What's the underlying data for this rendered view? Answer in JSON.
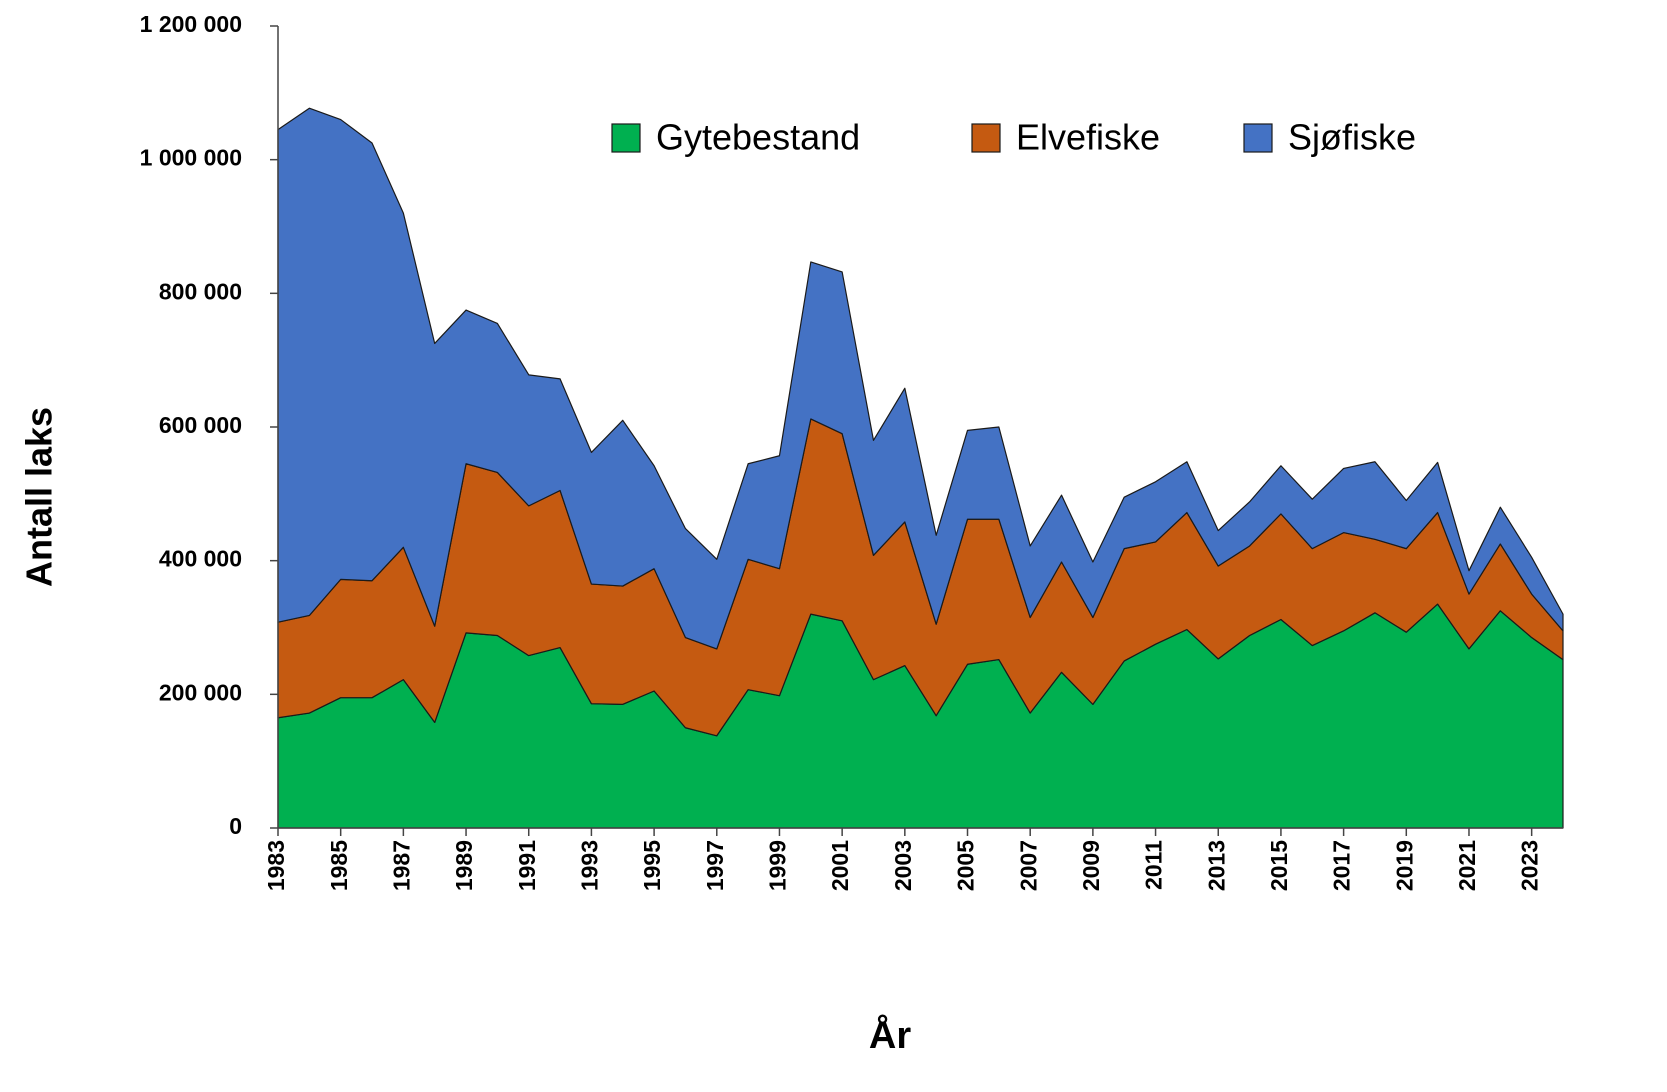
{
  "chart_data": {
    "type": "stacked_area",
    "y_label": "Antall laks",
    "x_label": "År",
    "x": [
      1983,
      1984,
      1985,
      1986,
      1987,
      1988,
      1989,
      1990,
      1991,
      1992,
      1993,
      1994,
      1995,
      1996,
      1997,
      1998,
      1999,
      2000,
      2001,
      2002,
      2003,
      2004,
      2005,
      2006,
      2007,
      2008,
      2009,
      2010,
      2011,
      2012,
      2013,
      2014,
      2015,
      2016,
      2017,
      2018,
      2019,
      2020,
      2021,
      2022,
      2023,
      2024
    ],
    "series": [
      {
        "name": "Gytebestand",
        "color": "#00b050",
        "values": [
          165000,
          172000,
          195000,
          195000,
          222000,
          158000,
          292000,
          288000,
          258000,
          270000,
          186000,
          185000,
          205000,
          150000,
          138000,
          207000,
          198000,
          320000,
          310000,
          222000,
          243000,
          168000,
          245000,
          252000,
          172000,
          233000,
          185000,
          250000,
          275000,
          297000,
          253000,
          288000,
          312000,
          273000,
          295000,
          322000,
          293000,
          335000,
          268000,
          325000,
          285000,
          252000
        ]
      },
      {
        "name": "Elvefiske",
        "color": "#c55a11",
        "values": [
          143000,
          146000,
          177000,
          175000,
          198000,
          144000,
          253000,
          244000,
          224000,
          235000,
          179000,
          177000,
          183000,
          135000,
          130000,
          195000,
          190000,
          292000,
          280000,
          186000,
          215000,
          137000,
          217000,
          210000,
          143000,
          165000,
          130000,
          168000,
          153000,
          175000,
          139000,
          134000,
          158000,
          145000,
          147000,
          110000,
          125000,
          137000,
          82000,
          100000,
          65000,
          43000
        ]
      },
      {
        "name": "Sjøfiske",
        "color": "#4472c4",
        "values": [
          737000,
          759000,
          688000,
          655000,
          500000,
          423000,
          230000,
          223000,
          196000,
          167000,
          197000,
          248000,
          154000,
          163000,
          134000,
          143000,
          169000,
          235000,
          242000,
          172000,
          200000,
          133000,
          133000,
          138000,
          107000,
          100000,
          83000,
          77000,
          90000,
          76000,
          53000,
          66000,
          72000,
          74000,
          96000,
          116000,
          72000,
          75000,
          35000,
          55000,
          55000,
          25000
        ]
      }
    ],
    "xlim": [
      1983,
      2024
    ],
    "xticks": [
      1983,
      1985,
      1987,
      1989,
      1991,
      1993,
      1995,
      1997,
      1999,
      2001,
      2003,
      2005,
      2007,
      2009,
      2011,
      2013,
      2015,
      2017,
      2019,
      2021,
      2023
    ],
    "ylim": [
      0,
      1200000
    ],
    "yticks": [
      0,
      {
        "value": 200000,
        "label": "200 000"
      },
      {
        "value": 400000,
        "label": "400 000"
      },
      {
        "value": 600000,
        "label": "600 000"
      },
      {
        "value": 800000,
        "label": "800 000"
      },
      {
        "value": 1000000,
        "label": "1 000 000"
      },
      {
        "value": 1200000,
        "label": "1 200 000"
      }
    ],
    "legend": "top-right",
    "grid": false
  }
}
